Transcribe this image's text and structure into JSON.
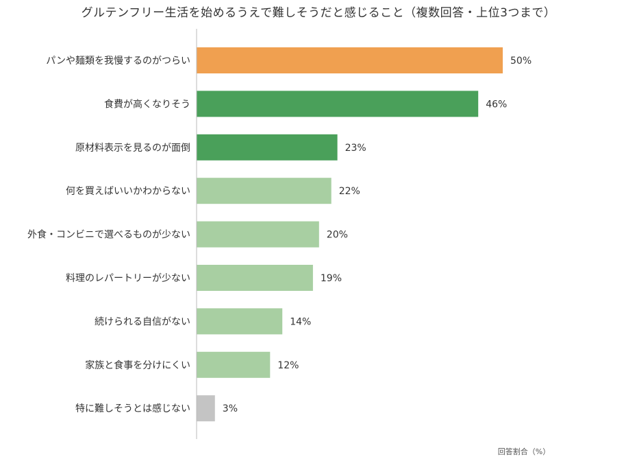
{
  "chart_data": {
    "type": "bar",
    "orientation": "horizontal",
    "title": "グルテンフリー生活を始めるうえで難しそうだと感じること（複数回答・上位3つまで）",
    "xlabel": "回答割合（%）",
    "ylabel": "",
    "xlim": [
      0,
      50
    ],
    "grid": false,
    "legend": "none",
    "value_suffix": "%",
    "categories": [
      "パンや麺類を我慢するのがつらい",
      "食費が高くなりそう",
      "原材料表示を見るのが面倒",
      "何を買えばいいかわからない",
      "外食・コンビニで選べるものが少ない",
      "料理のレパートリーが少ない",
      "続けられる自信がない",
      "家族と食事を分けにくい",
      "特に難しそうとは感じない"
    ],
    "values": [
      50,
      46,
      23,
      22,
      20,
      19,
      14,
      12,
      3
    ],
    "colors": [
      "#f0a050",
      "#4aa05a",
      "#4aa05a",
      "#a8cfa2",
      "#a8cfa2",
      "#a8cfa2",
      "#a8cfa2",
      "#a8cfa2",
      "#c4c4c4"
    ],
    "axis_color": "#bbbbbb",
    "text_color": "#333333"
  }
}
